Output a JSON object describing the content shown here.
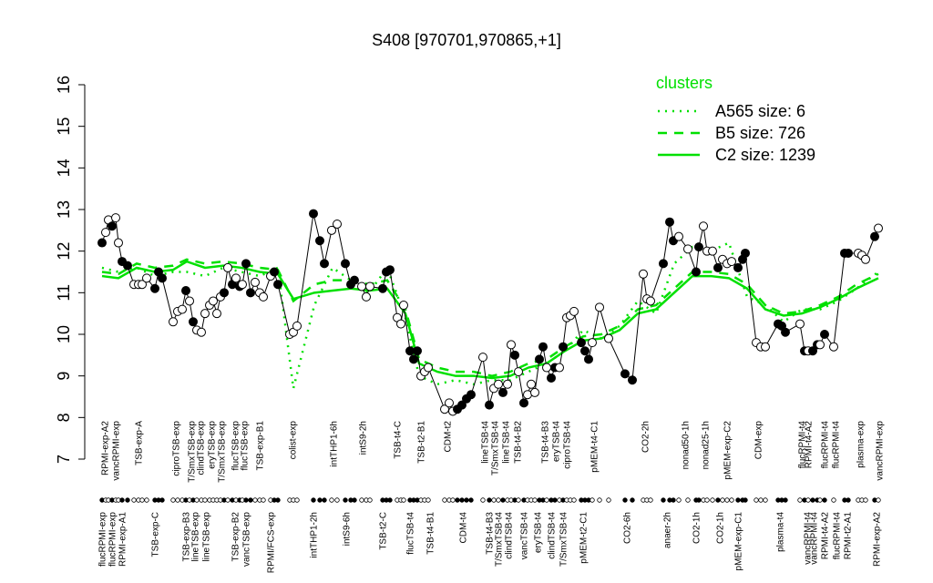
{
  "chart_data": {
    "type": "line",
    "title": "S408 [970701,970865,+1]",
    "xlim": [
      10.5,
      97.5
    ],
    "ylim": [
      7,
      16
    ],
    "yticks": [
      7,
      8,
      9,
      10,
      11,
      12,
      13,
      14,
      15,
      16
    ],
    "legend_title": "clusters",
    "legend_title_color": "#00e000",
    "series": [
      {
        "color": "#000000",
        "marker": "circle",
        "x": [
          11.2,
          11.6,
          11.9,
          12.3,
          12.7,
          13.0,
          13.4,
          14.0,
          14.7,
          15.2,
          15.6,
          16.1,
          17.0,
          17.4,
          17.8,
          19.0,
          19.5,
          20.0,
          20.4,
          20.8,
          21.2,
          21.6,
          22.1,
          22.5,
          23.0,
          23.4,
          23.8,
          24.2,
          24.6,
          25.0,
          25.5,
          25.9,
          26.3,
          26.6,
          27.0,
          27.5,
          28.0,
          28.5,
          28.9,
          29.7,
          30.1,
          30.5,
          31.8,
          32.2,
          32.6,
          34.4,
          35.1,
          35.6,
          36.4,
          37.0,
          37.9,
          38.5,
          38.9,
          39.7,
          40.2,
          40.6,
          42.0,
          42.4,
          42.8,
          43.6,
          44.0,
          44.3,
          45.0,
          45.4,
          45.8,
          46.2,
          46.6,
          47.0,
          48.8,
          49.3,
          49.7,
          50.2,
          50.7,
          51.2,
          51.7,
          53.0,
          53.7,
          54.2,
          54.7,
          55.2,
          55.7,
          56.1,
          56.5,
          56.9,
          57.5,
          57.9,
          58.3,
          58.7,
          59.2,
          59.6,
          60.0,
          60.5,
          60.9,
          61.4,
          61.8,
          62.2,
          62.6,
          63.0,
          63.8,
          64.2,
          64.6,
          65.0,
          65.8,
          66.8,
          68.6,
          69.4,
          70.6,
          71.0,
          71.4,
          72.8,
          73.5,
          73.9,
          74.5,
          75.5,
          76.4,
          76.7,
          77.2,
          77.6,
          78.2,
          78.8,
          79.3,
          79.8,
          80.3,
          81.0,
          81.5,
          81.8,
          83.0,
          83.5,
          84.0,
          85.4,
          85.8,
          86.2,
          87.8,
          88.3,
          88.7,
          89.2,
          89.7,
          90.0,
          90.5,
          91.5,
          92.7,
          93.1,
          94.2,
          94.6,
          95.0,
          96.0,
          96.4
        ],
        "values": [
          12.2,
          12.45,
          12.75,
          12.6,
          12.8,
          12.2,
          11.75,
          11.65,
          11.2,
          11.2,
          11.2,
          11.35,
          11.1,
          11.5,
          11.35,
          10.3,
          10.55,
          10.6,
          11.05,
          10.8,
          10.3,
          10.1,
          10.05,
          10.5,
          10.7,
          10.8,
          10.5,
          10.9,
          11.0,
          11.6,
          11.2,
          11.35,
          11.15,
          11.2,
          11.7,
          11.0,
          11.25,
          11.0,
          10.9,
          11.4,
          11.5,
          11.2,
          10.0,
          10.05,
          10.2,
          12.9,
          12.25,
          11.7,
          12.5,
          12.65,
          11.7,
          11.2,
          11.3,
          11.15,
          10.9,
          11.15,
          11.1,
          11.5,
          11.55,
          10.4,
          10.25,
          10.7,
          9.6,
          9.4,
          9.6,
          9.0,
          9.1,
          9.2,
          8.2,
          8.35,
          8.15,
          8.2,
          8.3,
          8.45,
          8.55,
          9.45,
          8.3,
          8.7,
          8.8,
          8.6,
          8.8,
          9.75,
          9.5,
          9.1,
          8.35,
          8.55,
          8.8,
          8.6,
          9.4,
          9.7,
          9.2,
          8.95,
          9.2,
          9.2,
          9.7,
          10.4,
          10.45,
          10.55,
          9.8,
          9.6,
          9.4,
          9.8,
          10.65,
          9.9,
          9.05,
          8.9,
          11.45,
          10.85,
          10.8,
          11.7,
          12.7,
          12.25,
          12.35,
          12.05,
          11.5,
          12.1,
          12.6,
          12.0,
          12.0,
          11.6,
          11.8,
          11.7,
          11.75,
          11.6,
          11.8,
          11.95,
          9.8,
          9.7,
          9.7,
          10.25,
          10.2,
          10.05,
          10.25,
          9.6,
          9.6,
          9.6,
          9.75,
          9.75,
          10.0,
          9.7,
          11.95,
          11.95,
          11.95,
          11.9,
          11.8,
          12.35,
          12.55
        ],
        "filled": [
          1,
          0,
          0,
          1,
          0,
          0,
          1,
          1,
          0,
          0,
          0,
          0,
          1,
          1,
          1,
          0,
          0,
          0,
          1,
          0,
          1,
          0,
          0,
          0,
          0,
          0,
          0,
          0,
          1,
          0,
          1,
          0,
          1,
          0,
          1,
          1,
          0,
          0,
          0,
          0,
          1,
          1,
          0,
          0,
          0,
          1,
          1,
          1,
          0,
          0,
          1,
          1,
          1,
          0,
          0,
          0,
          1,
          1,
          1,
          0,
          0,
          0,
          1,
          1,
          1,
          0,
          0,
          0,
          0,
          0,
          0,
          1,
          1,
          1,
          1,
          0,
          1,
          0,
          0,
          1,
          0,
          0,
          1,
          0,
          1,
          0,
          0,
          0,
          1,
          1,
          0,
          1,
          1,
          0,
          1,
          0,
          0,
          0,
          1,
          1,
          1,
          0,
          0,
          0,
          1,
          1,
          0,
          0,
          0,
          1,
          1,
          1,
          0,
          0,
          1,
          1,
          0,
          0,
          0,
          1,
          0,
          0,
          0,
          1,
          1,
          1,
          0,
          0,
          0,
          1,
          1,
          1,
          0,
          1,
          0,
          1,
          1,
          0,
          1,
          0,
          1,
          1,
          0,
          0,
          0,
          1,
          0
        ]
      },
      {
        "name": "A565 size: 6",
        "color": "#00e000",
        "dash": "dotted",
        "x": [
          11.2,
          13.0,
          15.0,
          17.0,
          19.0,
          20.5,
          22.5,
          24.5,
          26.5,
          28.5,
          30.5,
          32.2,
          34.5,
          36.5,
          38.5,
          40.5,
          42.5,
          44.5,
          46.0,
          48.0,
          50.0,
          52.0,
          54.0,
          56.0,
          58.0,
          60.0,
          62.0,
          64.0,
          66.0,
          68.0,
          70.0,
          72.0,
          74.0,
          76.0,
          78.0,
          80.0,
          82.0,
          84.0,
          86.0,
          88.0,
          90.0,
          92.0,
          94.0,
          96.4
        ],
        "values": [
          11.6,
          11.5,
          11.6,
          11.4,
          11.5,
          11.5,
          11.4,
          11.6,
          11.5,
          11.4,
          11.6,
          8.7,
          10.7,
          11.6,
          11.3,
          11.0,
          11.6,
          10.4,
          9.0,
          8.8,
          8.9,
          8.8,
          8.9,
          8.9,
          9.1,
          9.3,
          9.6,
          10.1,
          9.9,
          10.2,
          10.8,
          10.5,
          11.7,
          12.1,
          12.0,
          12.2,
          10.9,
          10.7,
          10.3,
          10.6,
          10.6,
          10.8,
          11.1,
          11.5
        ]
      },
      {
        "name": "B5 size: 726",
        "color": "#00e000",
        "dash": "dashed",
        "x": [
          11.2,
          13.0,
          15.0,
          17.0,
          19.0,
          20.5,
          22.5,
          24.5,
          26.5,
          28.5,
          30.5,
          32.2,
          34.5,
          36.5,
          38.5,
          40.5,
          42.5,
          44.5,
          46.0,
          48.0,
          50.0,
          52.0,
          54.0,
          56.0,
          58.0,
          60.0,
          62.0,
          64.0,
          66.0,
          68.0,
          70.0,
          72.0,
          74.0,
          76.0,
          78.0,
          80.0,
          82.0,
          84.0,
          86.0,
          88.0,
          90.0,
          92.0,
          94.0,
          96.4
        ],
        "values": [
          11.5,
          11.45,
          11.7,
          11.6,
          11.65,
          11.8,
          11.7,
          11.75,
          11.7,
          11.6,
          11.55,
          10.8,
          11.2,
          11.3,
          11.3,
          11.2,
          11.3,
          10.6,
          9.4,
          9.2,
          9.1,
          9.1,
          9.0,
          9.1,
          9.3,
          9.4,
          9.7,
          9.95,
          10.0,
          10.2,
          10.6,
          10.7,
          11.1,
          11.5,
          11.5,
          11.45,
          11.2,
          10.7,
          10.5,
          10.55,
          10.7,
          10.9,
          11.2,
          11.45
        ]
      },
      {
        "name": "C2 size: 1239",
        "color": "#00e000",
        "dash": "solid",
        "x": [
          11.2,
          13.0,
          15.0,
          17.0,
          19.0,
          20.5,
          22.5,
          24.5,
          26.5,
          28.5,
          30.5,
          32.2,
          34.5,
          36.5,
          38.5,
          40.5,
          42.5,
          44.5,
          46.0,
          48.0,
          50.0,
          52.0,
          54.0,
          56.0,
          58.0,
          60.0,
          62.0,
          64.0,
          66.0,
          68.0,
          70.0,
          72.0,
          74.0,
          76.0,
          78.0,
          80.0,
          82.0,
          84.0,
          86.0,
          88.0,
          90.0,
          92.0,
          94.0,
          96.4
        ],
        "values": [
          11.4,
          11.35,
          11.6,
          11.5,
          11.55,
          11.75,
          11.6,
          11.65,
          11.6,
          11.5,
          11.45,
          10.85,
          11.0,
          11.05,
          11.1,
          11.05,
          11.1,
          10.5,
          9.3,
          9.1,
          9.0,
          9.0,
          8.95,
          9.0,
          9.2,
          9.3,
          9.6,
          9.85,
          9.9,
          10.1,
          10.5,
          10.6,
          11.0,
          11.4,
          11.4,
          11.35,
          11.1,
          10.6,
          10.45,
          10.5,
          10.65,
          10.85,
          11.1,
          11.35
        ]
      }
    ],
    "xticks_top": [
      {
        "value": 11.5,
        "label": "RPMI-exp-A2"
      },
      {
        "value": 12.7,
        "label": "vancRPMI-exp"
      },
      {
        "value": 15.2,
        "label": "TSB-exp-A"
      },
      {
        "value": 19.3,
        "label": "ciproTSB-exp"
      },
      {
        "value": 21.0,
        "label": "T/SmxTSB-exp"
      },
      {
        "value": 22.0,
        "label": "clindTSB-exp"
      },
      {
        "value": 23.2,
        "label": "eryTSB-exp"
      },
      {
        "value": 24.3,
        "label": "T/SmxTSB-exp"
      },
      {
        "value": 25.8,
        "label": "flucTSB-exp"
      },
      {
        "value": 26.8,
        "label": "flucTSB-exp"
      },
      {
        "value": 28.5,
        "label": "TSB-exp-B1"
      },
      {
        "value": 32.1,
        "label": "colist-exp"
      },
      {
        "value": 36.6,
        "label": "intTHP1-6h"
      },
      {
        "value": 39.8,
        "label": "intS9-2h"
      },
      {
        "value": 43.6,
        "label": "TSB-t4-C"
      },
      {
        "value": 46.2,
        "label": "TSB-t2-B1"
      },
      {
        "value": 49.1,
        "label": "CDM-t2"
      },
      {
        "value": 53.2,
        "label": "lineTSB-t4"
      },
      {
        "value": 54.3,
        "label": "T/SmxTSB-t4"
      },
      {
        "value": 55.5,
        "label": "lineTSB-t4"
      },
      {
        "value": 56.8,
        "label": "TSB-t4-B2"
      },
      {
        "value": 59.8,
        "label": "TSB-t4-B3"
      },
      {
        "value": 61.0,
        "label": "eryTSB-t4"
      },
      {
        "value": 62.2,
        "label": "ciproTSB-t4"
      },
      {
        "value": 65.2,
        "label": "pMEM-t4-C1"
      },
      {
        "value": 70.8,
        "label": "CO2-2h"
      },
      {
        "value": 75.2,
        "label": "nonad50-1h"
      },
      {
        "value": 77.4,
        "label": "nonad25-1h"
      },
      {
        "value": 79.8,
        "label": "pMEM-exp-C2"
      },
      {
        "value": 83.2,
        "label": "CDM-exp"
      },
      {
        "value": 88.0,
        "label": "flucRPMI-t4"
      },
      {
        "value": 88.7,
        "label": "RPMI-t4-A2"
      },
      {
        "value": 90.5,
        "label": "flucRPMI-t4"
      },
      {
        "value": 91.7,
        "label": "flucRPMI-t4"
      },
      {
        "value": 94.4,
        "label": "plasma-exp"
      },
      {
        "value": 96.5,
        "label": "vancRPMI-exp"
      }
    ],
    "xticks": [
      {
        "value": 11.2,
        "label": "flucRPMI-exp"
      },
      {
        "value": 12.3,
        "label": "flucRPMI-exp"
      },
      {
        "value": 13.4,
        "label": "RPMI-exp-A1"
      },
      {
        "value": 17.0,
        "label": "TSB-exp-C"
      },
      {
        "value": 20.4,
        "label": "TSB-exp-B3"
      },
      {
        "value": 21.4,
        "label": "lineTSB-exp"
      },
      {
        "value": 22.6,
        "label": "lineTSB-exp"
      },
      {
        "value": 25.8,
        "label": "TSB-exp-B2"
      },
      {
        "value": 27.0,
        "label": "vancTSB-exp"
      },
      {
        "value": 29.7,
        "label": "RPMI/FCS-exp"
      },
      {
        "value": 34.4,
        "label": "intTHP1-2h"
      },
      {
        "value": 38.0,
        "label": "intS9-6h"
      },
      {
        "value": 42.0,
        "label": "TSB-t2-C"
      },
      {
        "value": 45.0,
        "label": "flucTSB-t4"
      },
      {
        "value": 47.2,
        "label": "TSB-t4-B1"
      },
      {
        "value": 50.8,
        "label": "CDM-t4"
      },
      {
        "value": 53.7,
        "label": "TSB-t4-B3"
      },
      {
        "value": 54.7,
        "label": "T/SmxTSB-t4"
      },
      {
        "value": 55.8,
        "label": "clindTSB-t4"
      },
      {
        "value": 57.5,
        "label": "vancTSB-t4"
      },
      {
        "value": 59.0,
        "label": "eryTSB-t4"
      },
      {
        "value": 60.5,
        "label": "clindTSB-t4"
      },
      {
        "value": 61.8,
        "label": "T/SmxTSB-t4"
      },
      {
        "value": 64.0,
        "label": "pMEM-t2-C1"
      },
      {
        "value": 68.8,
        "label": "CO2-6h"
      },
      {
        "value": 73.2,
        "label": "anaer-2h"
      },
      {
        "value": 76.4,
        "label": "CO2-1h"
      },
      {
        "value": 79.0,
        "label": "CO2-1h"
      },
      {
        "value": 81.0,
        "label": "pMEM-exp-C1"
      },
      {
        "value": 85.6,
        "label": "plasma-t4"
      },
      {
        "value": 88.6,
        "label": "vancRPMI-t4"
      },
      {
        "value": 89.3,
        "label": "vancRPMI-t4"
      },
      {
        "value": 90.5,
        "label": "RPMI-t4-A2"
      },
      {
        "value": 91.8,
        "label": "flucRPMI-t4"
      },
      {
        "value": 93.0,
        "label": "RPMI-t2-A1"
      },
      {
        "value": 96.2,
        "label": "RPMI-exp-A2"
      }
    ]
  }
}
